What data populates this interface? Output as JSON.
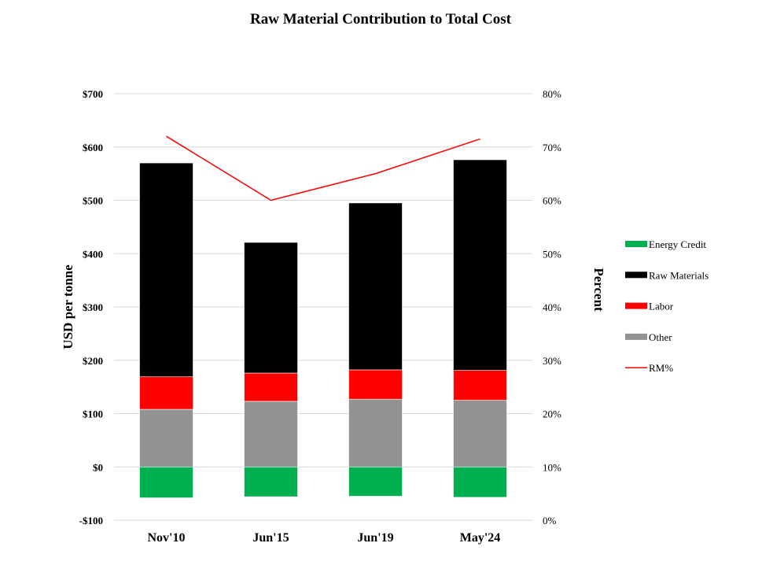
{
  "chart_data": {
    "type": "bar",
    "title": "Raw Material Contribution to Total Cost",
    "xlabel": "",
    "ylabel": "USD per tonne",
    "y2label": "Percent",
    "categories": [
      "Nov'10",
      "Jun'15",
      "Jun'19",
      "May'24"
    ],
    "ylim": [
      -100,
      700
    ],
    "y_ticks": [
      -100,
      0,
      100,
      200,
      300,
      400,
      500,
      600,
      700
    ],
    "y_tick_labels": [
      "-$100",
      "$0",
      "$100",
      "$200",
      "$300",
      "$400",
      "$500",
      "$600",
      "$700"
    ],
    "y2lim": [
      0,
      80
    ],
    "y2_ticks": [
      0,
      10,
      20,
      30,
      40,
      50,
      60,
      70,
      80
    ],
    "y2_tick_labels": [
      "0%",
      "10%",
      "20%",
      "30%",
      "40%",
      "50%",
      "60%",
      "70%",
      "80%"
    ],
    "stacked": true,
    "grid": true,
    "legend_position": "right",
    "series": [
      {
        "name": "Energy Credit",
        "kind": "bar",
        "color": "#00b050",
        "values": [
          -58,
          -56,
          -55,
          -57
        ]
      },
      {
        "name": "Other",
        "kind": "bar",
        "color": "#929292",
        "values": [
          108,
          123,
          127,
          125
        ]
      },
      {
        "name": "Labor",
        "kind": "bar",
        "color": "#ff0000",
        "values": [
          61,
          53,
          55,
          56
        ]
      },
      {
        "name": "Raw Materials",
        "kind": "bar",
        "color": "#000000",
        "values": [
          401,
          245,
          313,
          395
        ]
      },
      {
        "name": "RM%",
        "kind": "line",
        "axis": "right",
        "color": "#ff0000",
        "values": [
          72,
          60,
          65,
          71.5
        ]
      }
    ],
    "legend_order": [
      "Energy Credit",
      "Raw Materials",
      "Labor",
      "Other",
      "RM%"
    ]
  }
}
